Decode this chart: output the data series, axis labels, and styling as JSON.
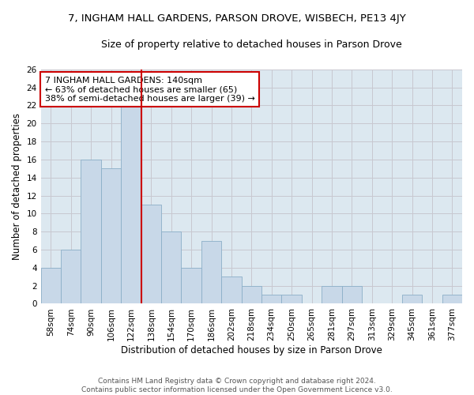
{
  "title_line1": "7, INGHAM HALL GARDENS, PARSON DROVE, WISBECH, PE13 4JY",
  "title_line2": "Size of property relative to detached houses in Parson Drove",
  "xlabel": "Distribution of detached houses by size in Parson Drove",
  "ylabel": "Number of detached properties",
  "bar_values": [
    4,
    6,
    16,
    15,
    22,
    11,
    8,
    4,
    7,
    3,
    2,
    1,
    1,
    0,
    2,
    2,
    0,
    0,
    1,
    0,
    1
  ],
  "bar_labels": [
    "58sqm",
    "74sqm",
    "90sqm",
    "106sqm",
    "122sqm",
    "138sqm",
    "154sqm",
    "170sqm",
    "186sqm",
    "202sqm",
    "218sqm",
    "234sqm",
    "250sqm",
    "265sqm",
    "281sqm",
    "297sqm",
    "313sqm",
    "329sqm",
    "345sqm",
    "361sqm",
    "377sqm"
  ],
  "bar_color": "#c8d8e8",
  "bar_edge_color": "#8bafc8",
  "vline_color": "#cc0000",
  "vline_x_index": 5,
  "annotation_text": "7 INGHAM HALL GARDENS: 140sqm\n← 63% of detached houses are smaller (65)\n38% of semi-detached houses are larger (39) →",
  "annotation_box_color": "white",
  "annotation_box_edge": "#cc0000",
  "ylim": [
    0,
    26
  ],
  "yticks": [
    0,
    2,
    4,
    6,
    8,
    10,
    12,
    14,
    16,
    18,
    20,
    22,
    24,
    26
  ],
  "grid_color": "#c8c8d0",
  "background_color": "#dce8f0",
  "footer_text": "Contains HM Land Registry data © Crown copyright and database right 2024.\nContains public sector information licensed under the Open Government Licence v3.0.",
  "title_fontsize": 9.5,
  "subtitle_fontsize": 9,
  "ylabel_fontsize": 8.5,
  "xlabel_fontsize": 8.5,
  "tick_fontsize": 7.5,
  "annotation_fontsize": 8,
  "footer_fontsize": 6.5
}
